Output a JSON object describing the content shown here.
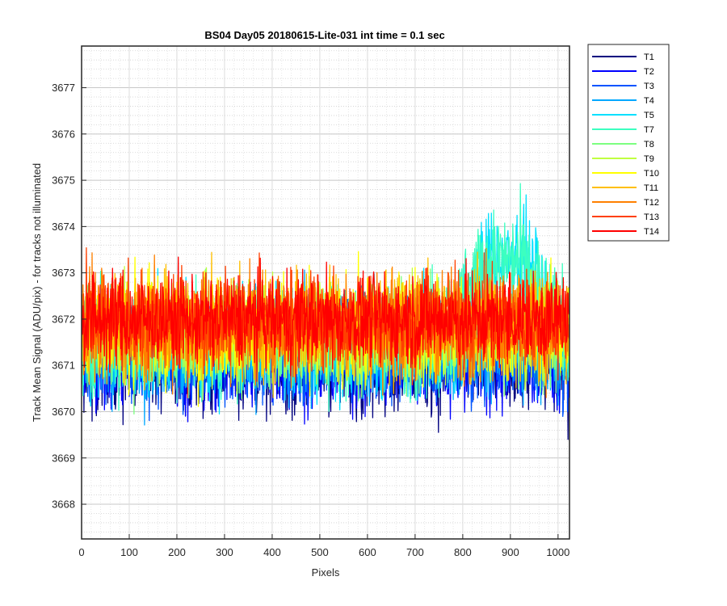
{
  "chart_data": {
    "type": "line",
    "title": "BS04 Day05 20180615-Lite-031 int time = 0.1 sec",
    "xlabel": "Pixels",
    "ylabel": "Track Mean Signal (ADU/pix) - for tracks not illuminated",
    "xlim": [
      0,
      1024
    ],
    "ylim": [
      3667.25,
      3677.9
    ],
    "x_ticks": [
      0,
      100,
      200,
      300,
      400,
      500,
      600,
      700,
      800,
      900,
      1000
    ],
    "x_tick_labels": [
      "0",
      "100",
      "200",
      "300",
      "400",
      "500",
      "600",
      "700",
      "800",
      "900",
      "1000"
    ],
    "y_ticks": [
      3668,
      3669,
      3670,
      3671,
      3672,
      3673,
      3674,
      3675,
      3676,
      3677
    ],
    "y_tick_labels": [
      "3668",
      "3669",
      "3670",
      "3671",
      "3672",
      "3673",
      "3674",
      "3675",
      "3676",
      "3677"
    ],
    "grid": "on",
    "minor_grid": "on",
    "legend_location": "outside-top-right",
    "x_points_per_series": 1024,
    "series": [
      {
        "name": "T1",
        "color": "#00007f",
        "mean": 3671.05,
        "spread": 0.75
      },
      {
        "name": "T2",
        "color": "#0000ff",
        "mean": 3671.1,
        "spread": 0.75
      },
      {
        "name": "T3",
        "color": "#0054ff",
        "mean": 3671.25,
        "spread": 0.75
      },
      {
        "name": "T4",
        "color": "#00a8ff",
        "mean": 3671.4,
        "spread": 0.8
      },
      {
        "name": "T5",
        "color": "#00e0ff",
        "mean": 3671.5,
        "spread": 0.8,
        "rise_after": 780,
        "rise_amount": 1.9
      },
      {
        "name": "T7",
        "color": "#3cffc0",
        "mean": 3671.55,
        "spread": 0.8,
        "rise_after": 760,
        "rise_amount": 1.7
      },
      {
        "name": "T8",
        "color": "#7cff80",
        "mean": 3671.6,
        "spread": 0.75
      },
      {
        "name": "T9",
        "color": "#c0ff40",
        "mean": 3671.7,
        "spread": 0.75
      },
      {
        "name": "T10",
        "color": "#ffff00",
        "mean": 3671.8,
        "spread": 0.8
      },
      {
        "name": "T11",
        "color": "#ffbf00",
        "mean": 3671.85,
        "spread": 0.8
      },
      {
        "name": "T12",
        "color": "#ff8000",
        "mean": 3671.9,
        "spread": 0.8
      },
      {
        "name": "T13",
        "color": "#ff4000",
        "mean": 3671.95,
        "spread": 0.75
      },
      {
        "name": "T14",
        "color": "#ff0000",
        "mean": 3672.0,
        "spread": 0.7
      }
    ]
  }
}
